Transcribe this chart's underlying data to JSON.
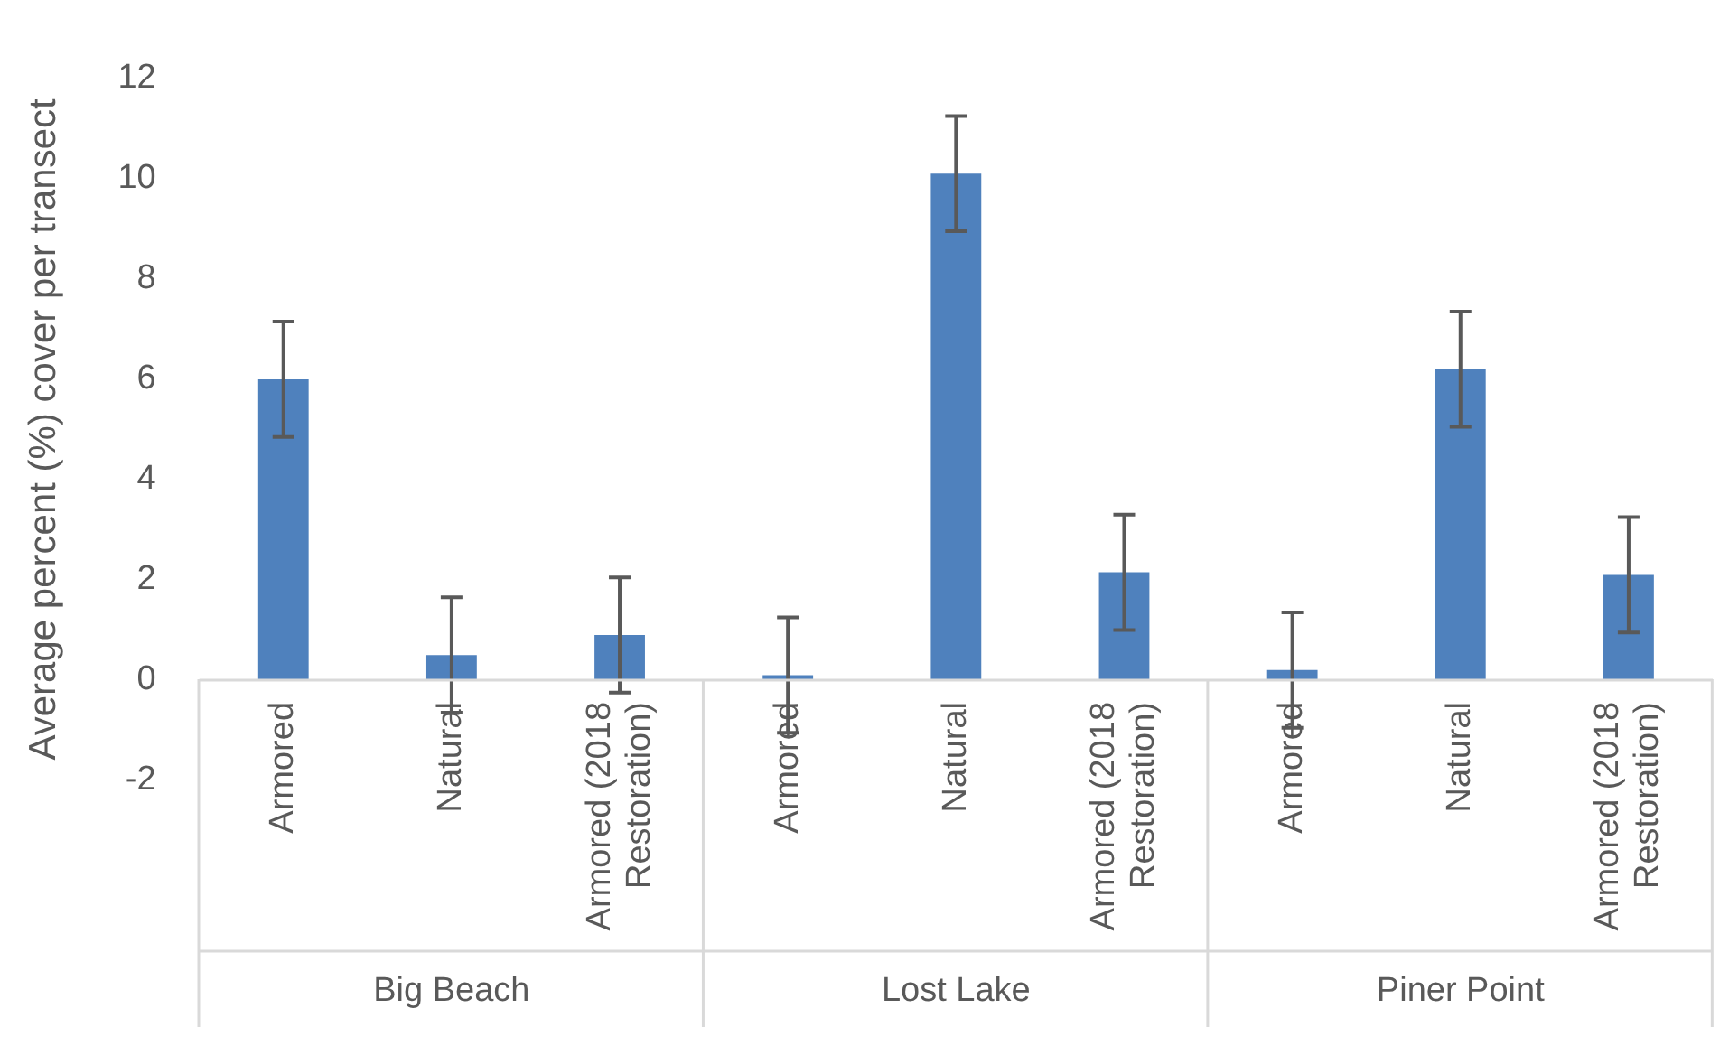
{
  "chart_data": {
    "type": "bar",
    "ylabel": "Average percent (%) cover per transect",
    "categories": [
      "Armored",
      "Natural",
      "Armored (2018 Restoration)",
      "Armored",
      "Natural",
      "Armored (2018 Restoration)",
      "Armored",
      "Natural",
      "Armored (2018 Restoration)"
    ],
    "values": [
      6.0,
      0.5,
      0.9,
      0.1,
      10.1,
      2.15,
      0.2,
      6.2,
      2.1
    ],
    "errors": [
      1.15,
      1.15,
      1.15,
      1.15,
      1.15,
      1.15,
      1.15,
      1.15,
      1.15
    ],
    "color": "#4f81bd",
    "ylim": [
      -2,
      12
    ],
    "yticks": [
      -2,
      0,
      2,
      4,
      6,
      8,
      10,
      12
    ],
    "annotations": [
      "Big Beach",
      "Lost Lake",
      "Piner Point"
    ],
    "grid": false,
    "legend": false
  }
}
